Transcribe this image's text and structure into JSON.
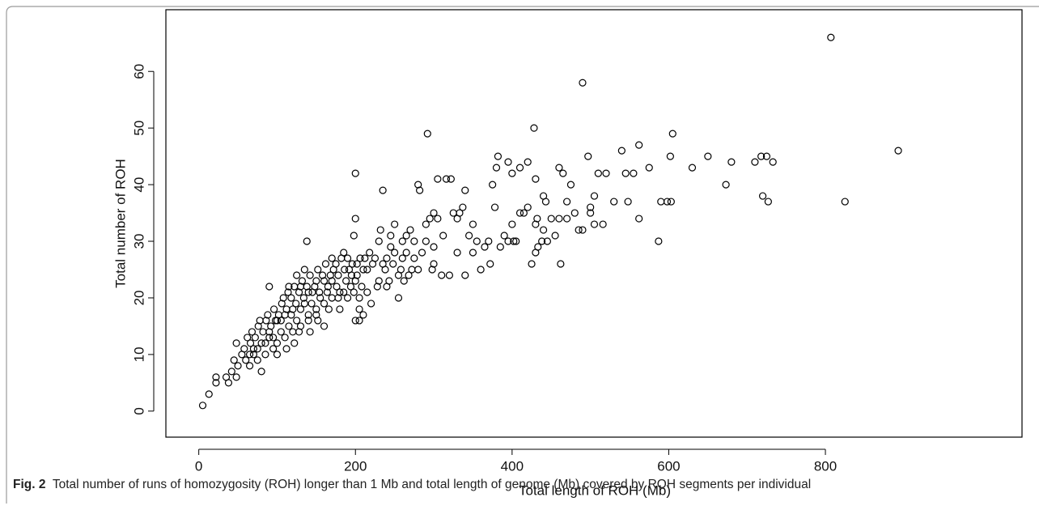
{
  "chart_data": {
    "type": "scatter",
    "xlabel": "Total length of ROH (Mb)",
    "ylabel": "Total number of ROH",
    "x": [
      5,
      13,
      22,
      22,
      35,
      38,
      42,
      45,
      48,
      48,
      50,
      55,
      60,
      65,
      70,
      75,
      80,
      85,
      90,
      95,
      100,
      105,
      110,
      115,
      120,
      125,
      130,
      135,
      140,
      145,
      150,
      155,
      160,
      165,
      170,
      175,
      178,
      180,
      185,
      188,
      192,
      196,
      202,
      205,
      208,
      212,
      218,
      222,
      228,
      238,
      243,
      248,
      250,
      262,
      268,
      272,
      275,
      285,
      298,
      58,
      62,
      66,
      68,
      72,
      76,
      78,
      82,
      86,
      88,
      92,
      96,
      98,
      102,
      106,
      108,
      112,
      114,
      118,
      122,
      124,
      128,
      132,
      134,
      138,
      142,
      144,
      148,
      152,
      154,
      158,
      162,
      164,
      168,
      172,
      176,
      182,
      186,
      190,
      194,
      198,
      200,
      202,
      206,
      120,
      110,
      100,
      90,
      80,
      70,
      130,
      140,
      150,
      160,
      170,
      180,
      190,
      140,
      135,
      125,
      115,
      105,
      95,
      85,
      75,
      65,
      160,
      170,
      150,
      130,
      122,
      112,
      100,
      118,
      128,
      142,
      152,
      166,
      178,
      185,
      195,
      210,
      215,
      220,
      205,
      230,
      235,
      260,
      265,
      280,
      240,
      245,
      255,
      275,
      90,
      138,
      200,
      235,
      200,
      198,
      200,
      205,
      210,
      215,
      225,
      230,
      232,
      240,
      245,
      250,
      255,
      258,
      260,
      265,
      270,
      280,
      282,
      290,
      292,
      295,
      300,
      305,
      316,
      322,
      330,
      333,
      337,
      340,
      345,
      350,
      365,
      370,
      360,
      372,
      385,
      390,
      378,
      375,
      380,
      382,
      395,
      400,
      410,
      420,
      440,
      443,
      460,
      470,
      480,
      470,
      475,
      465,
      460,
      490,
      428,
      497,
      500,
      500,
      505,
      505,
      516,
      510,
      520,
      530,
      548,
      540,
      545,
      555,
      562,
      562,
      575,
      587,
      590,
      598,
      603,
      602,
      605,
      630,
      650,
      673,
      680,
      710,
      718,
      725,
      733,
      720,
      727,
      807,
      825,
      893,
      402,
      405,
      425,
      430,
      433,
      462,
      450,
      320,
      310,
      330,
      340,
      300,
      350,
      355,
      290,
      300,
      305,
      312,
      325,
      415,
      420,
      430,
      440,
      445,
      455,
      485,
      490,
      395,
      400,
      410,
      430,
      432,
      438
    ],
    "values": [
      1,
      3,
      5,
      6,
      6,
      5,
      7,
      9,
      6,
      12,
      8,
      10,
      9,
      8,
      11,
      9,
      7,
      10,
      13,
      11,
      12,
      14,
      13,
      15,
      18,
      16,
      22,
      19,
      17,
      21,
      23,
      20,
      15,
      22,
      23,
      26,
      24,
      18,
      21,
      23,
      25,
      26,
      24,
      20,
      22,
      27,
      28,
      26,
      22,
      25,
      23,
      26,
      28,
      23,
      24,
      25,
      30,
      28,
      25,
      11,
      13,
      12,
      14,
      13,
      15,
      16,
      14,
      16,
      17,
      15,
      18,
      16,
      17,
      19,
      20,
      18,
      21,
      20,
      22,
      19,
      21,
      23,
      20,
      22,
      24,
      19,
      22,
      25,
      21,
      24,
      26,
      21,
      24,
      25,
      22,
      27,
      25,
      27,
      22,
      21,
      23,
      26,
      27,
      14,
      17,
      16,
      14,
      12,
      10,
      15,
      16,
      18,
      19,
      20,
      21,
      20,
      21,
      25,
      24,
      22,
      16,
      13,
      12,
      11,
      10,
      23,
      27,
      17,
      18,
      12,
      11,
      10,
      17,
      14,
      14,
      16,
      18,
      20,
      28,
      24,
      25,
      21,
      19,
      18,
      23,
      26,
      30,
      28,
      25,
      22,
      29,
      24,
      27,
      22,
      30,
      42,
      39,
      34,
      31,
      16,
      16,
      17,
      25,
      27,
      30,
      32,
      27,
      31,
      33,
      20,
      25,
      27,
      31,
      32,
      40,
      39,
      33,
      49,
      34,
      35,
      41,
      41,
      41,
      34,
      35,
      36,
      39,
      31,
      33,
      29,
      30,
      25,
      26,
      29,
      31,
      36,
      40,
      43,
      45,
      44,
      42,
      43,
      44,
      38,
      37,
      34,
      34,
      35,
      37,
      40,
      42,
      43,
      58,
      50,
      45,
      35,
      36,
      38,
      33,
      33,
      42,
      42,
      37,
      37,
      46,
      42,
      42,
      47,
      34,
      43,
      30,
      37,
      37,
      37,
      45,
      49,
      43,
      45,
      40,
      44,
      44,
      45,
      45,
      44,
      38,
      37,
      66,
      37,
      46,
      30,
      30,
      26,
      28,
      29,
      26,
      34,
      24,
      24,
      28,
      24,
      26,
      28,
      30,
      30,
      29,
      34,
      31,
      35,
      35,
      36,
      33,
      32,
      30,
      31,
      32,
      32,
      30,
      33,
      35,
      41,
      34,
      30
    ],
    "xlim": [
      -42,
      1051
    ],
    "ylim": [
      -4.6,
      70.9
    ],
    "xticks": [
      0,
      200,
      400,
      600,
      800
    ],
    "yticks": [
      0,
      10,
      20,
      30,
      40,
      50,
      60
    ],
    "color": "#000000"
  },
  "caption": {
    "label": "Fig. 2",
    "text": "Total number of runs of homozygosity (ROH) longer than 1 Mb and total length of genome (Mb) covered by ROH segments per individual"
  }
}
